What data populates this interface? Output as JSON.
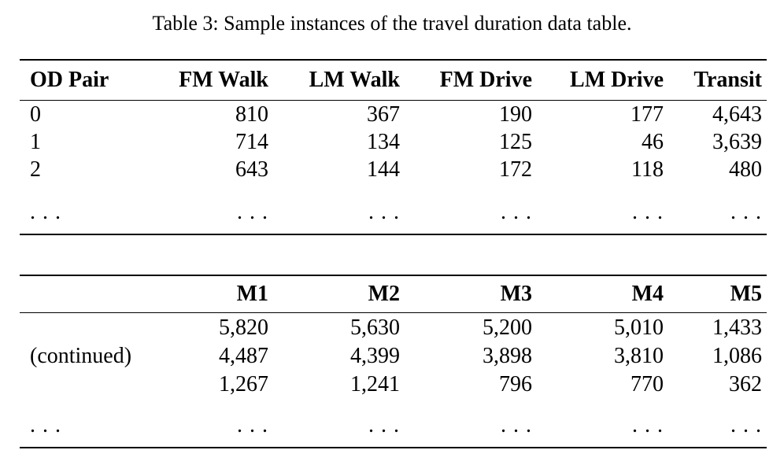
{
  "caption": "Table 3: Sample instances of the travel duration data table.",
  "table1": {
    "headers": [
      "OD Pair",
      "FM Walk",
      "LM Walk",
      "FM Drive",
      "LM Drive",
      "Transit"
    ],
    "rows": [
      [
        "0",
        "810",
        "367",
        "190",
        "177",
        "4,643"
      ],
      [
        "1",
        "714",
        "134",
        "125",
        "46",
        "3,639"
      ],
      [
        "2",
        "643",
        "144",
        "172",
        "118",
        "480"
      ],
      [
        ". . .",
        ". . .",
        ". . .",
        ". . .",
        ". . .",
        ". . ."
      ]
    ]
  },
  "table2": {
    "headers": [
      "",
      "M1",
      "M2",
      "M3",
      "M4",
      "M5"
    ],
    "rows": [
      [
        "",
        "5,820",
        "5,630",
        "5,200",
        "5,010",
        "1,433"
      ],
      [
        "(continued)",
        "4,487",
        "4,399",
        "3,898",
        "3,810",
        "1,086"
      ],
      [
        "",
        "1,267",
        "1,241",
        "796",
        "770",
        "362"
      ],
      [
        ". . .",
        ". . .",
        ". . .",
        ". . .",
        ". . .",
        ". . ."
      ]
    ]
  },
  "colors": {
    "text": "#000000",
    "background": "#ffffff",
    "rule": "#000000"
  }
}
